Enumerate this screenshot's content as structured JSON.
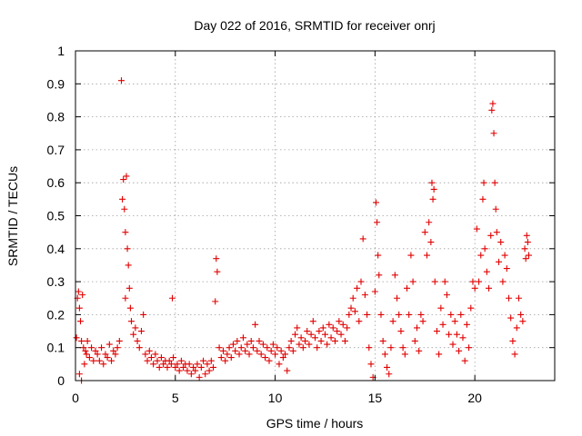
{
  "chart_data": {
    "type": "scatter",
    "title": "Day 022 of 2016, SRMTID for receiver onrj",
    "xlabel": "GPS time / hours",
    "ylabel": "SRMTID / TECUs",
    "xlim": [
      0,
      24
    ],
    "ylim": [
      0,
      1
    ],
    "xticks": [
      0,
      5,
      10,
      15,
      20
    ],
    "xtick_labels": [
      "0",
      "5",
      "10",
      "15",
      "20"
    ],
    "yticks": [
      0,
      0.1,
      0.2,
      0.3,
      0.4,
      0.5,
      0.6,
      0.7,
      0.8,
      0.9,
      1
    ],
    "ytick_labels": [
      "0",
      "0.1",
      "0.2",
      "0.3",
      "0.4",
      "0.5",
      "0.6",
      "0.7",
      "0.8",
      "0.9",
      "1"
    ],
    "grid": true,
    "marker": "+",
    "marker_color": "#e00000",
    "series": [
      {
        "name": "SRMTID",
        "points": [
          [
            0.05,
            0.13
          ],
          [
            0.1,
            0.25
          ],
          [
            0.15,
            0.27
          ],
          [
            0.2,
            0.22
          ],
          [
            0.25,
            0.18
          ],
          [
            0.3,
            0.12
          ],
          [
            0.35,
            0.26
          ],
          [
            0.4,
            0.1
          ],
          [
            0.45,
            0.05
          ],
          [
            0.5,
            0.09
          ],
          [
            0.2,
            0.02
          ],
          [
            0.3,
            0.0
          ],
          [
            0.55,
            0.08
          ],
          [
            0.6,
            0.12
          ],
          [
            0.7,
            0.07
          ],
          [
            0.8,
            0.1
          ],
          [
            0.9,
            0.06
          ],
          [
            1.0,
            0.09
          ],
          [
            1.1,
            0.08
          ],
          [
            1.2,
            0.06
          ],
          [
            1.3,
            0.1
          ],
          [
            1.4,
            0.05
          ],
          [
            1.5,
            0.08
          ],
          [
            1.6,
            0.07
          ],
          [
            1.7,
            0.11
          ],
          [
            1.8,
            0.06
          ],
          [
            1.9,
            0.09
          ],
          [
            2.0,
            0.08
          ],
          [
            2.1,
            0.1
          ],
          [
            2.2,
            0.12
          ],
          [
            2.3,
            0.91
          ],
          [
            2.35,
            0.55
          ],
          [
            2.4,
            0.61
          ],
          [
            2.45,
            0.52
          ],
          [
            2.5,
            0.45
          ],
          [
            2.55,
            0.62
          ],
          [
            2.6,
            0.4
          ],
          [
            2.65,
            0.35
          ],
          [
            2.7,
            0.28
          ],
          [
            2.75,
            0.22
          ],
          [
            2.5,
            0.25
          ],
          [
            2.8,
            0.18
          ],
          [
            2.9,
            0.14
          ],
          [
            3.0,
            0.16
          ],
          [
            3.1,
            0.12
          ],
          [
            3.2,
            0.1
          ],
          [
            3.3,
            0.15
          ],
          [
            3.4,
            0.2
          ],
          [
            3.5,
            0.08
          ],
          [
            3.6,
            0.06
          ],
          [
            3.7,
            0.09
          ],
          [
            3.8,
            0.07
          ],
          [
            3.9,
            0.05
          ],
          [
            4.0,
            0.08
          ],
          [
            4.1,
            0.06
          ],
          [
            4.2,
            0.04
          ],
          [
            4.3,
            0.07
          ],
          [
            4.4,
            0.05
          ],
          [
            4.5,
            0.06
          ],
          [
            4.6,
            0.04
          ],
          [
            4.7,
            0.06
          ],
          [
            4.8,
            0.05
          ],
          [
            4.85,
            0.25
          ],
          [
            4.9,
            0.07
          ],
          [
            5.0,
            0.04
          ],
          [
            5.1,
            0.05
          ],
          [
            5.2,
            0.03
          ],
          [
            5.3,
            0.06
          ],
          [
            5.4,
            0.04
          ],
          [
            5.5,
            0.05
          ],
          [
            5.6,
            0.03
          ],
          [
            5.7,
            0.05
          ],
          [
            5.8,
            0.02
          ],
          [
            5.9,
            0.04
          ],
          [
            6.0,
            0.03
          ],
          [
            6.1,
            0.05
          ],
          [
            6.2,
            0.01
          ],
          [
            6.3,
            0.04
          ],
          [
            6.4,
            0.06
          ],
          [
            6.5,
            0.02
          ],
          [
            6.6,
            0.05
          ],
          [
            6.7,
            0.03
          ],
          [
            6.8,
            0.06
          ],
          [
            6.9,
            0.04
          ],
          [
            7.0,
            0.24
          ],
          [
            7.05,
            0.37
          ],
          [
            7.1,
            0.33
          ],
          [
            7.2,
            0.1
          ],
          [
            7.3,
            0.07
          ],
          [
            7.4,
            0.09
          ],
          [
            7.5,
            0.06
          ],
          [
            7.6,
            0.08
          ],
          [
            7.7,
            0.1
          ],
          [
            7.8,
            0.07
          ],
          [
            7.9,
            0.11
          ],
          [
            8.0,
            0.09
          ],
          [
            8.1,
            0.12
          ],
          [
            8.2,
            0.08
          ],
          [
            8.3,
            0.1
          ],
          [
            8.4,
            0.13
          ],
          [
            8.5,
            0.09
          ],
          [
            8.6,
            0.11
          ],
          [
            8.7,
            0.08
          ],
          [
            8.8,
            0.12
          ],
          [
            8.9,
            0.1
          ],
          [
            9.0,
            0.17
          ],
          [
            9.1,
            0.09
          ],
          [
            9.2,
            0.12
          ],
          [
            9.3,
            0.08
          ],
          [
            9.4,
            0.11
          ],
          [
            9.5,
            0.07
          ],
          [
            9.6,
            0.1
          ],
          [
            9.7,
            0.06
          ],
          [
            9.8,
            0.09
          ],
          [
            9.9,
            0.11
          ],
          [
            10.0,
            0.08
          ],
          [
            10.1,
            0.1
          ],
          [
            10.2,
            0.05
          ],
          [
            10.3,
            0.09
          ],
          [
            10.4,
            0.07
          ],
          [
            10.5,
            0.08
          ],
          [
            10.6,
            0.03
          ],
          [
            10.7,
            0.1
          ],
          [
            10.8,
            0.12
          ],
          [
            10.9,
            0.09
          ],
          [
            11.0,
            0.14
          ],
          [
            11.1,
            0.16
          ],
          [
            11.2,
            0.11
          ],
          [
            11.3,
            0.13
          ],
          [
            11.4,
            0.1
          ],
          [
            11.5,
            0.12
          ],
          [
            11.6,
            0.15
          ],
          [
            11.7,
            0.11
          ],
          [
            11.8,
            0.14
          ],
          [
            11.9,
            0.18
          ],
          [
            12.0,
            0.13
          ],
          [
            12.1,
            0.1
          ],
          [
            12.2,
            0.15
          ],
          [
            12.3,
            0.12
          ],
          [
            12.4,
            0.16
          ],
          [
            12.5,
            0.14
          ],
          [
            12.6,
            0.11
          ],
          [
            12.7,
            0.17
          ],
          [
            12.8,
            0.13
          ],
          [
            12.9,
            0.16
          ],
          [
            13.0,
            0.12
          ],
          [
            13.1,
            0.15
          ],
          [
            13.2,
            0.18
          ],
          [
            13.3,
            0.14
          ],
          [
            13.4,
            0.17
          ],
          [
            13.5,
            0.12
          ],
          [
            13.6,
            0.16
          ],
          [
            13.7,
            0.2
          ],
          [
            13.8,
            0.22
          ],
          [
            13.9,
            0.25
          ],
          [
            14.0,
            0.21
          ],
          [
            14.1,
            0.28
          ],
          [
            14.2,
            0.18
          ],
          [
            14.3,
            0.3
          ],
          [
            14.4,
            0.43
          ],
          [
            14.5,
            0.26
          ],
          [
            14.6,
            0.2
          ],
          [
            14.7,
            0.1
          ],
          [
            14.8,
            0.05
          ],
          [
            14.9,
            0.01
          ],
          [
            15.0,
            0.27
          ],
          [
            15.05,
            0.54
          ],
          [
            15.1,
            0.48
          ],
          [
            15.15,
            0.38
          ],
          [
            15.2,
            0.32
          ],
          [
            15.3,
            0.2
          ],
          [
            15.4,
            0.12
          ],
          [
            15.5,
            0.08
          ],
          [
            15.6,
            0.04
          ],
          [
            15.7,
            0.02
          ],
          [
            15.8,
            0.1
          ],
          [
            15.9,
            0.18
          ],
          [
            16.0,
            0.32
          ],
          [
            16.1,
            0.25
          ],
          [
            16.2,
            0.2
          ],
          [
            16.3,
            0.15
          ],
          [
            16.4,
            0.1
          ],
          [
            16.5,
            0.08
          ],
          [
            16.6,
            0.28
          ],
          [
            16.7,
            0.2
          ],
          [
            16.8,
            0.38
          ],
          [
            16.9,
            0.3
          ],
          [
            17.0,
            0.12
          ],
          [
            17.1,
            0.16
          ],
          [
            17.2,
            0.09
          ],
          [
            17.3,
            0.2
          ],
          [
            17.4,
            0.18
          ],
          [
            17.5,
            0.45
          ],
          [
            17.6,
            0.38
          ],
          [
            17.7,
            0.48
          ],
          [
            17.8,
            0.42
          ],
          [
            17.85,
            0.6
          ],
          [
            17.9,
            0.55
          ],
          [
            17.95,
            0.58
          ],
          [
            18.0,
            0.3
          ],
          [
            18.1,
            0.15
          ],
          [
            18.2,
            0.08
          ],
          [
            18.3,
            0.22
          ],
          [
            18.4,
            0.17
          ],
          [
            18.5,
            0.3
          ],
          [
            18.6,
            0.26
          ],
          [
            18.7,
            0.14
          ],
          [
            18.8,
            0.2
          ],
          [
            18.9,
            0.11
          ],
          [
            19.0,
            0.18
          ],
          [
            19.1,
            0.14
          ],
          [
            19.2,
            0.09
          ],
          [
            19.3,
            0.2
          ],
          [
            19.4,
            0.13
          ],
          [
            19.5,
            0.06
          ],
          [
            19.6,
            0.17
          ],
          [
            19.7,
            0.1
          ],
          [
            19.8,
            0.22
          ],
          [
            19.9,
            0.3
          ],
          [
            20.0,
            0.28
          ],
          [
            20.1,
            0.46
          ],
          [
            20.2,
            0.3
          ],
          [
            20.3,
            0.38
          ],
          [
            20.4,
            0.55
          ],
          [
            20.45,
            0.6
          ],
          [
            20.5,
            0.4
          ],
          [
            20.6,
            0.33
          ],
          [
            20.7,
            0.28
          ],
          [
            20.8,
            0.44
          ],
          [
            20.85,
            0.82
          ],
          [
            20.9,
            0.84
          ],
          [
            20.95,
            0.75
          ],
          [
            21.0,
            0.6
          ],
          [
            21.05,
            0.52
          ],
          [
            21.1,
            0.45
          ],
          [
            21.2,
            0.36
          ],
          [
            21.3,
            0.42
          ],
          [
            21.4,
            0.3
          ],
          [
            21.5,
            0.38
          ],
          [
            21.6,
            0.34
          ],
          [
            21.7,
            0.25
          ],
          [
            21.8,
            0.19
          ],
          [
            21.9,
            0.12
          ],
          [
            22.0,
            0.08
          ],
          [
            22.1,
            0.16
          ],
          [
            22.2,
            0.25
          ],
          [
            22.3,
            0.2
          ],
          [
            22.4,
            0.18
          ],
          [
            22.5,
            0.4
          ],
          [
            22.55,
            0.37
          ],
          [
            22.6,
            0.44
          ],
          [
            22.65,
            0.42
          ],
          [
            22.7,
            0.38
          ]
        ]
      }
    ]
  }
}
